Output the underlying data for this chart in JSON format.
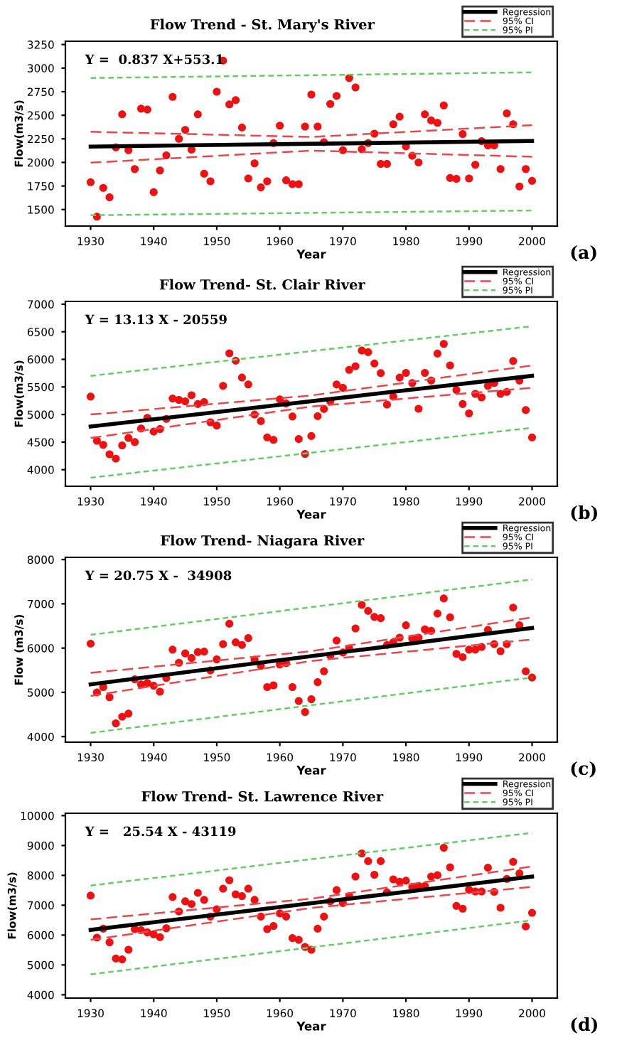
{
  "chart_data": [
    {
      "type": "scatter",
      "title": "Flow Trend - St. Mary's River",
      "xlabel": "Year",
      "ylabel": "Flow(m3/s)",
      "annotations": [
        "Y =  0.837 X+553.1",
        "(a)"
      ],
      "legend": "top right",
      "grid": false,
      "x": [
        1930,
        1931,
        1932,
        1933,
        1934,
        1935,
        1936,
        1937,
        1938,
        1939,
        1940,
        1941,
        1942,
        1943,
        1944,
        1945,
        1946,
        1947,
        1948,
        1949,
        1950,
        1951,
        1952,
        1953,
        1954,
        1955,
        1956,
        1957,
        1958,
        1959,
        1960,
        1961,
        1962,
        1963,
        1964,
        1965,
        1966,
        1967,
        1968,
        1969,
        1970,
        1971,
        1972,
        1973,
        1974,
        1975,
        1976,
        1977,
        1978,
        1979,
        1980,
        1981,
        1982,
        1983,
        1984,
        1985,
        1986,
        1987,
        1988,
        1989,
        1990,
        1991,
        1992,
        1993,
        1994,
        1995,
        1996,
        1997,
        1998,
        1999,
        2000
      ],
      "xlim": [
        1926,
        2004
      ],
      "xticks": [
        1930,
        1940,
        1950,
        1960,
        1970,
        1980,
        1990,
        2000
      ],
      "ylim": [
        1325,
        3285
      ],
      "yticks": [
        1500,
        1750,
        2000,
        2250,
        2500,
        2750,
        3000,
        3250
      ],
      "series": [
        {
          "color": "#ee1111",
          "marker": "circle",
          "values": [
            1790,
            1425,
            1730,
            1630,
            2160,
            2510,
            2130,
            1930,
            2570,
            2560,
            1685,
            1915,
            2075,
            2695,
            2250,
            2345,
            2135,
            2510,
            1880,
            1800,
            2750,
            3080,
            2615,
            2660,
            2370,
            1830,
            1990,
            1735,
            1800,
            2205,
            2390,
            1810,
            1770,
            1770,
            2380,
            2720,
            2380,
            2215,
            2620,
            2705,
            2130,
            2895,
            2795,
            2140,
            2205,
            2305,
            1985,
            1985,
            2405,
            2485,
            2170,
            2070,
            2000,
            2510,
            2445,
            2420,
            2605,
            1835,
            1825,
            2300,
            1830,
            1975,
            2225,
            2180,
            2180,
            1930,
            2520,
            2405,
            1745,
            1930,
            1805
          ]
        },
        {
          "type": "line",
          "name": "Regression",
          "color": "#000000",
          "line_style": "solid",
          "x": [
            1930,
            2000
          ],
          "values": [
            2168,
            2227
          ]
        },
        {
          "type": "line",
          "name": "95% CI",
          "color": "#e8474b",
          "line_style": "dashed",
          "x": [
            1930,
            1965,
            2000
          ],
          "values": [
            2325,
            2270,
            2395
          ]
        },
        {
          "type": "line",
          "color": "#e8474b",
          "line_style": "dashed",
          "x": [
            1930,
            1965,
            2000
          ],
          "values": [
            1997,
            2125,
            2060
          ]
        },
        {
          "type": "line",
          "name": "95% PI",
          "color": "#66cc66",
          "line_style": "dotted",
          "x": [
            1930,
            2000
          ],
          "values": [
            2895,
            2955
          ]
        },
        {
          "type": "line",
          "color": "#66cc66",
          "line_style": "dotted",
          "x": [
            1930,
            2000
          ],
          "values": [
            1440,
            1490
          ]
        }
      ]
    },
    {
      "type": "scatter",
      "title": "Flow Trend- St. Clair River",
      "xlabel": "Year",
      "ylabel": "Flow(m3/s)",
      "annotations": [
        "Y = 13.13 X - 20559",
        "(b)"
      ],
      "legend": "top right",
      "grid": false,
      "x": [
        1930,
        1931,
        1932,
        1933,
        1934,
        1935,
        1936,
        1937,
        1938,
        1939,
        1940,
        1941,
        1942,
        1943,
        1944,
        1945,
        1946,
        1947,
        1948,
        1949,
        1950,
        1951,
        1952,
        1953,
        1954,
        1955,
        1956,
        1957,
        1958,
        1959,
        1960,
        1961,
        1962,
        1963,
        1964,
        1965,
        1966,
        1967,
        1968,
        1969,
        1970,
        1971,
        1972,
        1973,
        1974,
        1975,
        1976,
        1977,
        1978,
        1979,
        1980,
        1981,
        1982,
        1983,
        1984,
        1985,
        1986,
        1987,
        1988,
        1989,
        1990,
        1991,
        1992,
        1993,
        1994,
        1995,
        1996,
        1997,
        1998,
        1999,
        2000
      ],
      "xlim": [
        1926,
        2004
      ],
      "xticks": [
        1930,
        1940,
        1950,
        1960,
        1970,
        1980,
        1990,
        2000
      ],
      "ylim": [
        3700,
        7050
      ],
      "yticks": [
        4000,
        4500,
        5000,
        5500,
        6000,
        6500,
        7000
      ],
      "series": [
        {
          "color": "#ee1111",
          "marker": "circle",
          "values": [
            5325,
            4525,
            4450,
            4280,
            4200,
            4440,
            4575,
            4500,
            4745,
            4940,
            4690,
            4735,
            4920,
            5290,
            5265,
            5240,
            5350,
            5190,
            5225,
            4860,
            4800,
            5520,
            6110,
            5975,
            5670,
            5545,
            5000,
            4880,
            4585,
            4540,
            5275,
            5200,
            4965,
            4555,
            4285,
            4610,
            4970,
            5100,
            5240,
            5545,
            5485,
            5810,
            5875,
            6160,
            6130,
            5925,
            5750,
            5180,
            5325,
            5670,
            5755,
            5570,
            5105,
            5755,
            5615,
            6105,
            6280,
            5890,
            5445,
            5190,
            5020,
            5375,
            5310,
            5520,
            5570,
            5375,
            5410,
            5970,
            5615,
            5080,
            4585
          ]
        },
        {
          "type": "line",
          "name": "Regression",
          "color": "#000000",
          "line_style": "solid",
          "x": [
            1930,
            2000
          ],
          "values": [
            4782,
            5701
          ]
        },
        {
          "type": "line",
          "name": "95% CI",
          "color": "#e8474b",
          "line_style": "dashed",
          "x": [
            1930,
            1965,
            2000
          ],
          "values": [
            5000,
            5345,
            5890
          ]
        },
        {
          "type": "line",
          "color": "#e8474b",
          "line_style": "dashed",
          "x": [
            1930,
            1965,
            2000
          ],
          "values": [
            4575,
            5145,
            5485
          ]
        },
        {
          "type": "line",
          "name": "95% PI",
          "color": "#66cc66",
          "line_style": "dotted",
          "x": [
            1930,
            2000
          ],
          "values": [
            5700,
            6600
          ]
        },
        {
          "type": "line",
          "color": "#66cc66",
          "line_style": "dotted",
          "x": [
            1930,
            2000
          ],
          "values": [
            3855,
            4760
          ]
        }
      ]
    },
    {
      "type": "scatter",
      "title": "Flow Trend- Niagara River",
      "xlabel": "Year",
      "ylabel": "Flow (m3/s)",
      "annotations": [
        "Y = 20.75 X -  34908",
        "(c)"
      ],
      "legend": "top right",
      "grid": false,
      "x": [
        1930,
        1931,
        1932,
        1933,
        1934,
        1935,
        1936,
        1937,
        1938,
        1939,
        1940,
        1941,
        1942,
        1943,
        1944,
        1945,
        1946,
        1947,
        1948,
        1949,
        1950,
        1951,
        1952,
        1953,
        1954,
        1955,
        1956,
        1957,
        1958,
        1959,
        1960,
        1961,
        1962,
        1963,
        1964,
        1965,
        1966,
        1967,
        1968,
        1969,
        1970,
        1971,
        1972,
        1973,
        1974,
        1975,
        1976,
        1977,
        1978,
        1979,
        1980,
        1981,
        1982,
        1983,
        1984,
        1985,
        1986,
        1987,
        1988,
        1989,
        1990,
        1991,
        1992,
        1993,
        1994,
        1995,
        1996,
        1997,
        1998,
        1999,
        2000
      ],
      "xlim": [
        1926,
        2004
      ],
      "xticks": [
        1930,
        1940,
        1950,
        1960,
        1970,
        1980,
        1990,
        2000
      ],
      "ylim": [
        3875,
        8050
      ],
      "yticks": [
        4000,
        5000,
        6000,
        7000,
        8000
      ],
      "series": [
        {
          "color": "#ee1111",
          "marker": "circle",
          "values": [
            6100,
            5000,
            5120,
            4890,
            4300,
            4450,
            4520,
            5295,
            5180,
            5210,
            5150,
            5015,
            5325,
            5965,
            5670,
            5880,
            5775,
            5910,
            5920,
            5495,
            5745,
            6090,
            6550,
            6130,
            6070,
            6225,
            5735,
            5600,
            5120,
            5160,
            5630,
            5660,
            5120,
            4805,
            4555,
            4845,
            5230,
            5475,
            5830,
            6170,
            5900,
            5995,
            6445,
            6975,
            6840,
            6705,
            6675,
            6070,
            6130,
            6235,
            6515,
            6215,
            6235,
            6425,
            6390,
            6780,
            7120,
            6695,
            5870,
            5795,
            5965,
            5965,
            6025,
            6410,
            6090,
            5930,
            6090,
            6915,
            6515,
            5475,
            5335
          ]
        },
        {
          "type": "line",
          "name": "Regression",
          "color": "#000000",
          "line_style": "solid",
          "x": [
            1930,
            2000
          ],
          "values": [
            5180,
            6455
          ]
        },
        {
          "type": "line",
          "name": "95% CI",
          "color": "#e8474b",
          "line_style": "dashed",
          "x": [
            1930,
            1965,
            2000
          ],
          "values": [
            5440,
            5930,
            6695
          ]
        },
        {
          "type": "line",
          "color": "#e8474b",
          "line_style": "dashed",
          "x": [
            1930,
            1965,
            2000
          ],
          "values": [
            4920,
            5710,
            6195
          ]
        },
        {
          "type": "line",
          "name": "95% PI",
          "color": "#66cc66",
          "line_style": "dotted",
          "x": [
            1930,
            2000
          ],
          "values": [
            6300,
            7550
          ]
        },
        {
          "type": "line",
          "color": "#66cc66",
          "line_style": "dotted",
          "x": [
            1930,
            2000
          ],
          "values": [
            4085,
            5335
          ]
        }
      ]
    },
    {
      "type": "scatter",
      "title": "Flow Trend- St. Lawrence River",
      "xlabel": "Year",
      "ylabel": "Flow(m3/s)",
      "annotations": [
        "Y =   25.54 X - 43119",
        "(d)"
      ],
      "legend": "top right",
      "grid": false,
      "x": [
        1930,
        1931,
        1932,
        1933,
        1934,
        1935,
        1936,
        1937,
        1938,
        1939,
        1940,
        1941,
        1942,
        1943,
        1944,
        1945,
        1946,
        1947,
        1948,
        1949,
        1950,
        1951,
        1952,
        1953,
        1954,
        1955,
        1956,
        1957,
        1958,
        1959,
        1960,
        1961,
        1962,
        1963,
        1964,
        1965,
        1966,
        1967,
        1968,
        1969,
        1970,
        1971,
        1972,
        1973,
        1974,
        1975,
        1976,
        1977,
        1978,
        1979,
        1980,
        1981,
        1982,
        1983,
        1984,
        1985,
        1986,
        1987,
        1988,
        1989,
        1990,
        1991,
        1992,
        1993,
        1994,
        1995,
        1996,
        1997,
        1998,
        1999,
        2000
      ],
      "xlim": [
        1926,
        2004
      ],
      "xticks": [
        1930,
        1940,
        1950,
        1960,
        1970,
        1980,
        1990,
        2000
      ],
      "ylim": [
        3890,
        10080
      ],
      "yticks": [
        4000,
        5000,
        6000,
        7000,
        8000,
        9000,
        10000
      ],
      "series": [
        {
          "color": "#ee1111",
          "marker": "circle",
          "values": [
            7320,
            5915,
            6215,
            5760,
            5215,
            5185,
            5510,
            6200,
            6165,
            6090,
            6025,
            5930,
            6230,
            7275,
            6790,
            7130,
            7040,
            7415,
            7180,
            6620,
            6865,
            7555,
            7835,
            7365,
            7305,
            7555,
            7180,
            6620,
            6200,
            6305,
            6725,
            6620,
            5900,
            5840,
            5605,
            5510,
            6215,
            6620,
            7130,
            7505,
            7070,
            7305,
            7960,
            8735,
            8475,
            8020,
            8475,
            7430,
            7865,
            7785,
            7820,
            7615,
            7645,
            7645,
            7960,
            8005,
            8925,
            8270,
            6975,
            6885,
            7520,
            7460,
            7460,
            8255,
            7445,
            6915,
            7880,
            8455,
            8065,
            6290,
            6745
          ]
        },
        {
          "type": "line",
          "name": "Regression",
          "color": "#000000",
          "line_style": "solid",
          "x": [
            1930,
            2000
          ],
          "values": [
            6173,
            7961
          ]
        },
        {
          "type": "line",
          "name": "95% CI",
          "color": "#e8474b",
          "line_style": "dashed",
          "x": [
            1930,
            1965,
            2000
          ],
          "values": [
            6525,
            7220,
            8300
          ]
        },
        {
          "type": "line",
          "color": "#e8474b",
          "line_style": "dashed",
          "x": [
            1930,
            1965,
            2000
          ],
          "values": [
            5840,
            6910,
            7615
          ]
        },
        {
          "type": "line",
          "name": "95% PI",
          "color": "#66cc66",
          "line_style": "dotted",
          "x": [
            1930,
            2000
          ],
          "values": [
            7660,
            9425
          ]
        },
        {
          "type": "line",
          "color": "#66cc66",
          "line_style": "dotted",
          "x": [
            1930,
            2000
          ],
          "values": [
            4685,
            6495
          ]
        }
      ]
    }
  ]
}
